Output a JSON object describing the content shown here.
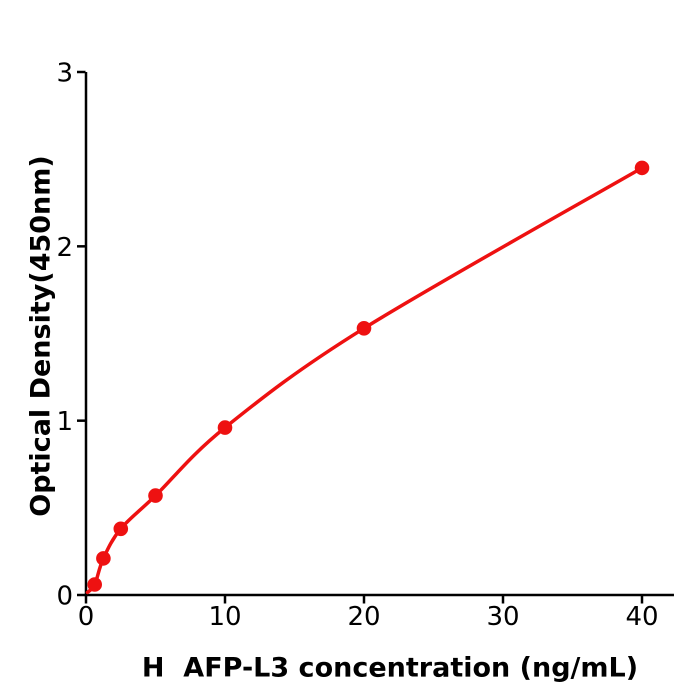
{
  "figure": {
    "background": "#ffffff",
    "axis_color": "#000000",
    "accent_color": "#EE1111"
  },
  "chart_data": {
    "type": "scatter",
    "title": "",
    "xlabel": "H  AFP-L3 concentration (ng/mL)",
    "ylabel": "Optical Density(450nm)",
    "x": [
      0.625,
      1.25,
      2.5,
      5,
      10,
      20,
      40
    ],
    "y": [
      0.06,
      0.21,
      0.38,
      0.57,
      0.96,
      1.53,
      2.45
    ],
    "curve_anchor": [
      0.1,
      0.015
    ],
    "x_ticks": [
      0,
      10,
      20,
      30,
      40
    ],
    "y_ticks": [
      0,
      1,
      2,
      3
    ],
    "xlim": [
      0,
      42.3
    ],
    "ylim": [
      0,
      3
    ],
    "grid": false,
    "legend": null,
    "line_style": "smooth-fit-curve",
    "marker": "circle",
    "line_color": "#EE1111",
    "marker_color": "#EE1111"
  }
}
